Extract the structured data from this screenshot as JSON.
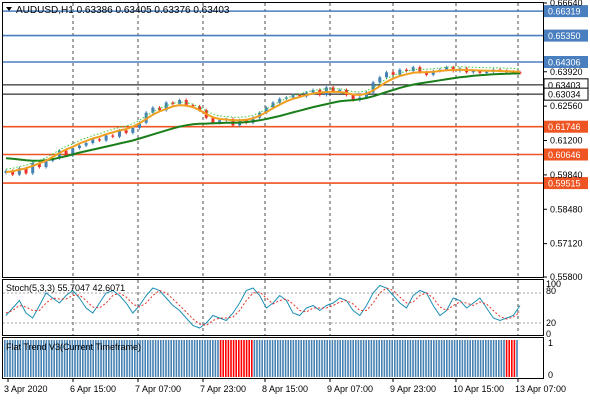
{
  "header": {
    "symbol_line": "AUDUSD,H1  0.63386 0.63405 0.63376 0.63403",
    "collapse_icon": "triangle-down-icon"
  },
  "chart_data": {
    "type": "line",
    "price_axis": {
      "ticks": [
        "0.66640",
        "0.63920",
        "0.62560",
        "0.61200",
        "0.59840",
        "0.58480",
        "0.57120",
        "0.55800"
      ],
      "ylim": [
        0.558,
        0.6664
      ]
    },
    "time_axis": {
      "labels": [
        "3 Apr 2020",
        "6 Apr 15:00",
        "7 Apr 07:00",
        "7 Apr 23:00",
        "8 Apr 15:00",
        "9 Apr 07:00",
        "9 Apr 23:00",
        "10 Apr 15:00",
        "13 Apr 07:00"
      ]
    },
    "levels": [
      {
        "value": 0.66319,
        "label": "0.66319",
        "color": "#4a7fbf"
      },
      {
        "value": 0.6535,
        "label": "0.65350",
        "color": "#4a7fbf"
      },
      {
        "value": 0.64306,
        "label": "0.64306",
        "color": "#4a7fbf"
      },
      {
        "value": 0.63403,
        "label": "0.63403",
        "color": "#000000"
      },
      {
        "value": 0.63034,
        "label": "0.63034",
        "color": "#000000"
      },
      {
        "value": 0.61746,
        "label": "0.61746",
        "color": "#ee5522"
      },
      {
        "value": 0.60646,
        "label": "0.60646",
        "color": "#ee5522"
      },
      {
        "value": 0.59515,
        "label": "0.59515",
        "color": "#ee5522"
      }
    ],
    "price_series": [
      0.6,
      0.5985,
      0.601,
      0.599,
      0.603,
      0.6015,
      0.604,
      0.605,
      0.608,
      0.606,
      0.609,
      0.61,
      0.611,
      0.6125,
      0.612,
      0.614,
      0.6135,
      0.616,
      0.615,
      0.617,
      0.619,
      0.623,
      0.625,
      0.624,
      0.627,
      0.6265,
      0.628,
      0.626,
      0.6255,
      0.624,
      0.621,
      0.619,
      0.62,
      0.6205,
      0.618,
      0.62,
      0.619,
      0.621,
      0.623,
      0.625,
      0.627,
      0.6285,
      0.629,
      0.63,
      0.6295,
      0.631,
      0.632,
      0.63,
      0.633,
      0.6315,
      0.632,
      0.63,
      0.628,
      0.629,
      0.631,
      0.635,
      0.637,
      0.639,
      0.638,
      0.64,
      0.6395,
      0.641,
      0.639,
      0.638,
      0.6395,
      0.64,
      0.641,
      0.6395,
      0.6405,
      0.639,
      0.6395,
      0.6388,
      0.6392,
      0.64,
      0.6396,
      0.6392,
      0.639,
      0.6387
    ],
    "ma_fast": [
      0.5995,
      0.5998,
      0.6005,
      0.601,
      0.602,
      0.603,
      0.604,
      0.6055,
      0.607,
      0.6085,
      0.6095,
      0.6108,
      0.6118,
      0.6128,
      0.6135,
      0.6145,
      0.6152,
      0.616,
      0.6165,
      0.6175,
      0.6188,
      0.6205,
      0.6222,
      0.6235,
      0.6245,
      0.6255,
      0.626,
      0.6258,
      0.6252,
      0.624,
      0.6225,
      0.6212,
      0.6205,
      0.6203,
      0.62,
      0.62,
      0.6202,
      0.6208,
      0.6218,
      0.6232,
      0.6248,
      0.6262,
      0.6275,
      0.6285,
      0.6292,
      0.63,
      0.6306,
      0.631,
      0.6312,
      0.6313,
      0.6312,
      0.6308,
      0.6302,
      0.63,
      0.6305,
      0.6318,
      0.6335,
      0.6352,
      0.6365,
      0.6375,
      0.6382,
      0.6388,
      0.639,
      0.639,
      0.6392,
      0.6395,
      0.6398,
      0.6399,
      0.64,
      0.6399,
      0.6398,
      0.6397,
      0.6396,
      0.6396,
      0.6395,
      0.6394,
      0.6393,
      0.6392
    ],
    "ma_slow": [
      0.605,
      0.6048,
      0.6045,
      0.6042,
      0.604,
      0.604,
      0.6042,
      0.6046,
      0.6052,
      0.6058,
      0.6065,
      0.6072,
      0.6078,
      0.6084,
      0.609,
      0.6096,
      0.6102,
      0.6108,
      0.6114,
      0.612,
      0.6128,
      0.6136,
      0.6144,
      0.6152,
      0.616,
      0.6168,
      0.6175,
      0.618,
      0.6184,
      0.6186,
      0.6187,
      0.6188,
      0.6189,
      0.619,
      0.619,
      0.6191,
      0.6193,
      0.6196,
      0.62,
      0.6205,
      0.6211,
      0.6217,
      0.6224,
      0.6231,
      0.6238,
      0.6245,
      0.6252,
      0.6258,
      0.6264,
      0.627,
      0.6275,
      0.6278,
      0.628,
      0.6283,
      0.6288,
      0.6295,
      0.6303,
      0.6312,
      0.632,
      0.6328,
      0.6335,
      0.6341,
      0.6346,
      0.635,
      0.6354,
      0.6358,
      0.6362,
      0.6366,
      0.637,
      0.6373,
      0.6376,
      0.6378,
      0.638,
      0.6382,
      0.6383,
      0.6384,
      0.6385,
      0.6385
    ],
    "stochastic": {
      "label": "Stoch(5,3,3) 55.7047 42.6071",
      "levels": [
        "100",
        "80",
        "20",
        "0"
      ],
      "main": [
        35,
        50,
        65,
        40,
        30,
        55,
        80,
        70,
        60,
        75,
        85,
        70,
        50,
        40,
        60,
        80,
        85,
        75,
        60,
        40,
        55,
        75,
        90,
        85,
        70,
        55,
        45,
        30,
        15,
        10,
        20,
        35,
        30,
        25,
        40,
        60,
        85,
        90,
        75,
        50,
        60,
        75,
        65,
        40,
        35,
        50,
        55,
        45,
        55,
        60,
        70,
        65,
        45,
        35,
        55,
        80,
        95,
        90,
        75,
        60,
        50,
        75,
        85,
        80,
        55,
        35,
        45,
        70,
        65,
        50,
        60,
        70,
        50,
        30,
        25,
        30,
        35,
        55
      ],
      "signal": [
        40,
        45,
        55,
        52,
        45,
        45,
        60,
        70,
        68,
        68,
        75,
        76,
        65,
        52,
        50,
        60,
        75,
        80,
        72,
        58,
        52,
        60,
        75,
        85,
        80,
        68,
        55,
        42,
        28,
        18,
        15,
        25,
        30,
        30,
        32,
        45,
        65,
        80,
        82,
        70,
        58,
        65,
        68,
        58,
        45,
        42,
        50,
        50,
        50,
        55,
        62,
        65,
        58,
        45,
        45,
        60,
        80,
        90,
        85,
        72,
        60,
        62,
        75,
        80,
        70,
        52,
        45,
        55,
        62,
        60,
        55,
        62,
        58,
        45,
        33,
        28,
        32,
        42
      ]
    },
    "trend_indicator": {
      "label": "Flat Trend V3(Current Timeframe)",
      "levels": [
        "1",
        "0"
      ],
      "colors": {
        "up": "#4682b4",
        "down": "#ff0000"
      }
    }
  }
}
